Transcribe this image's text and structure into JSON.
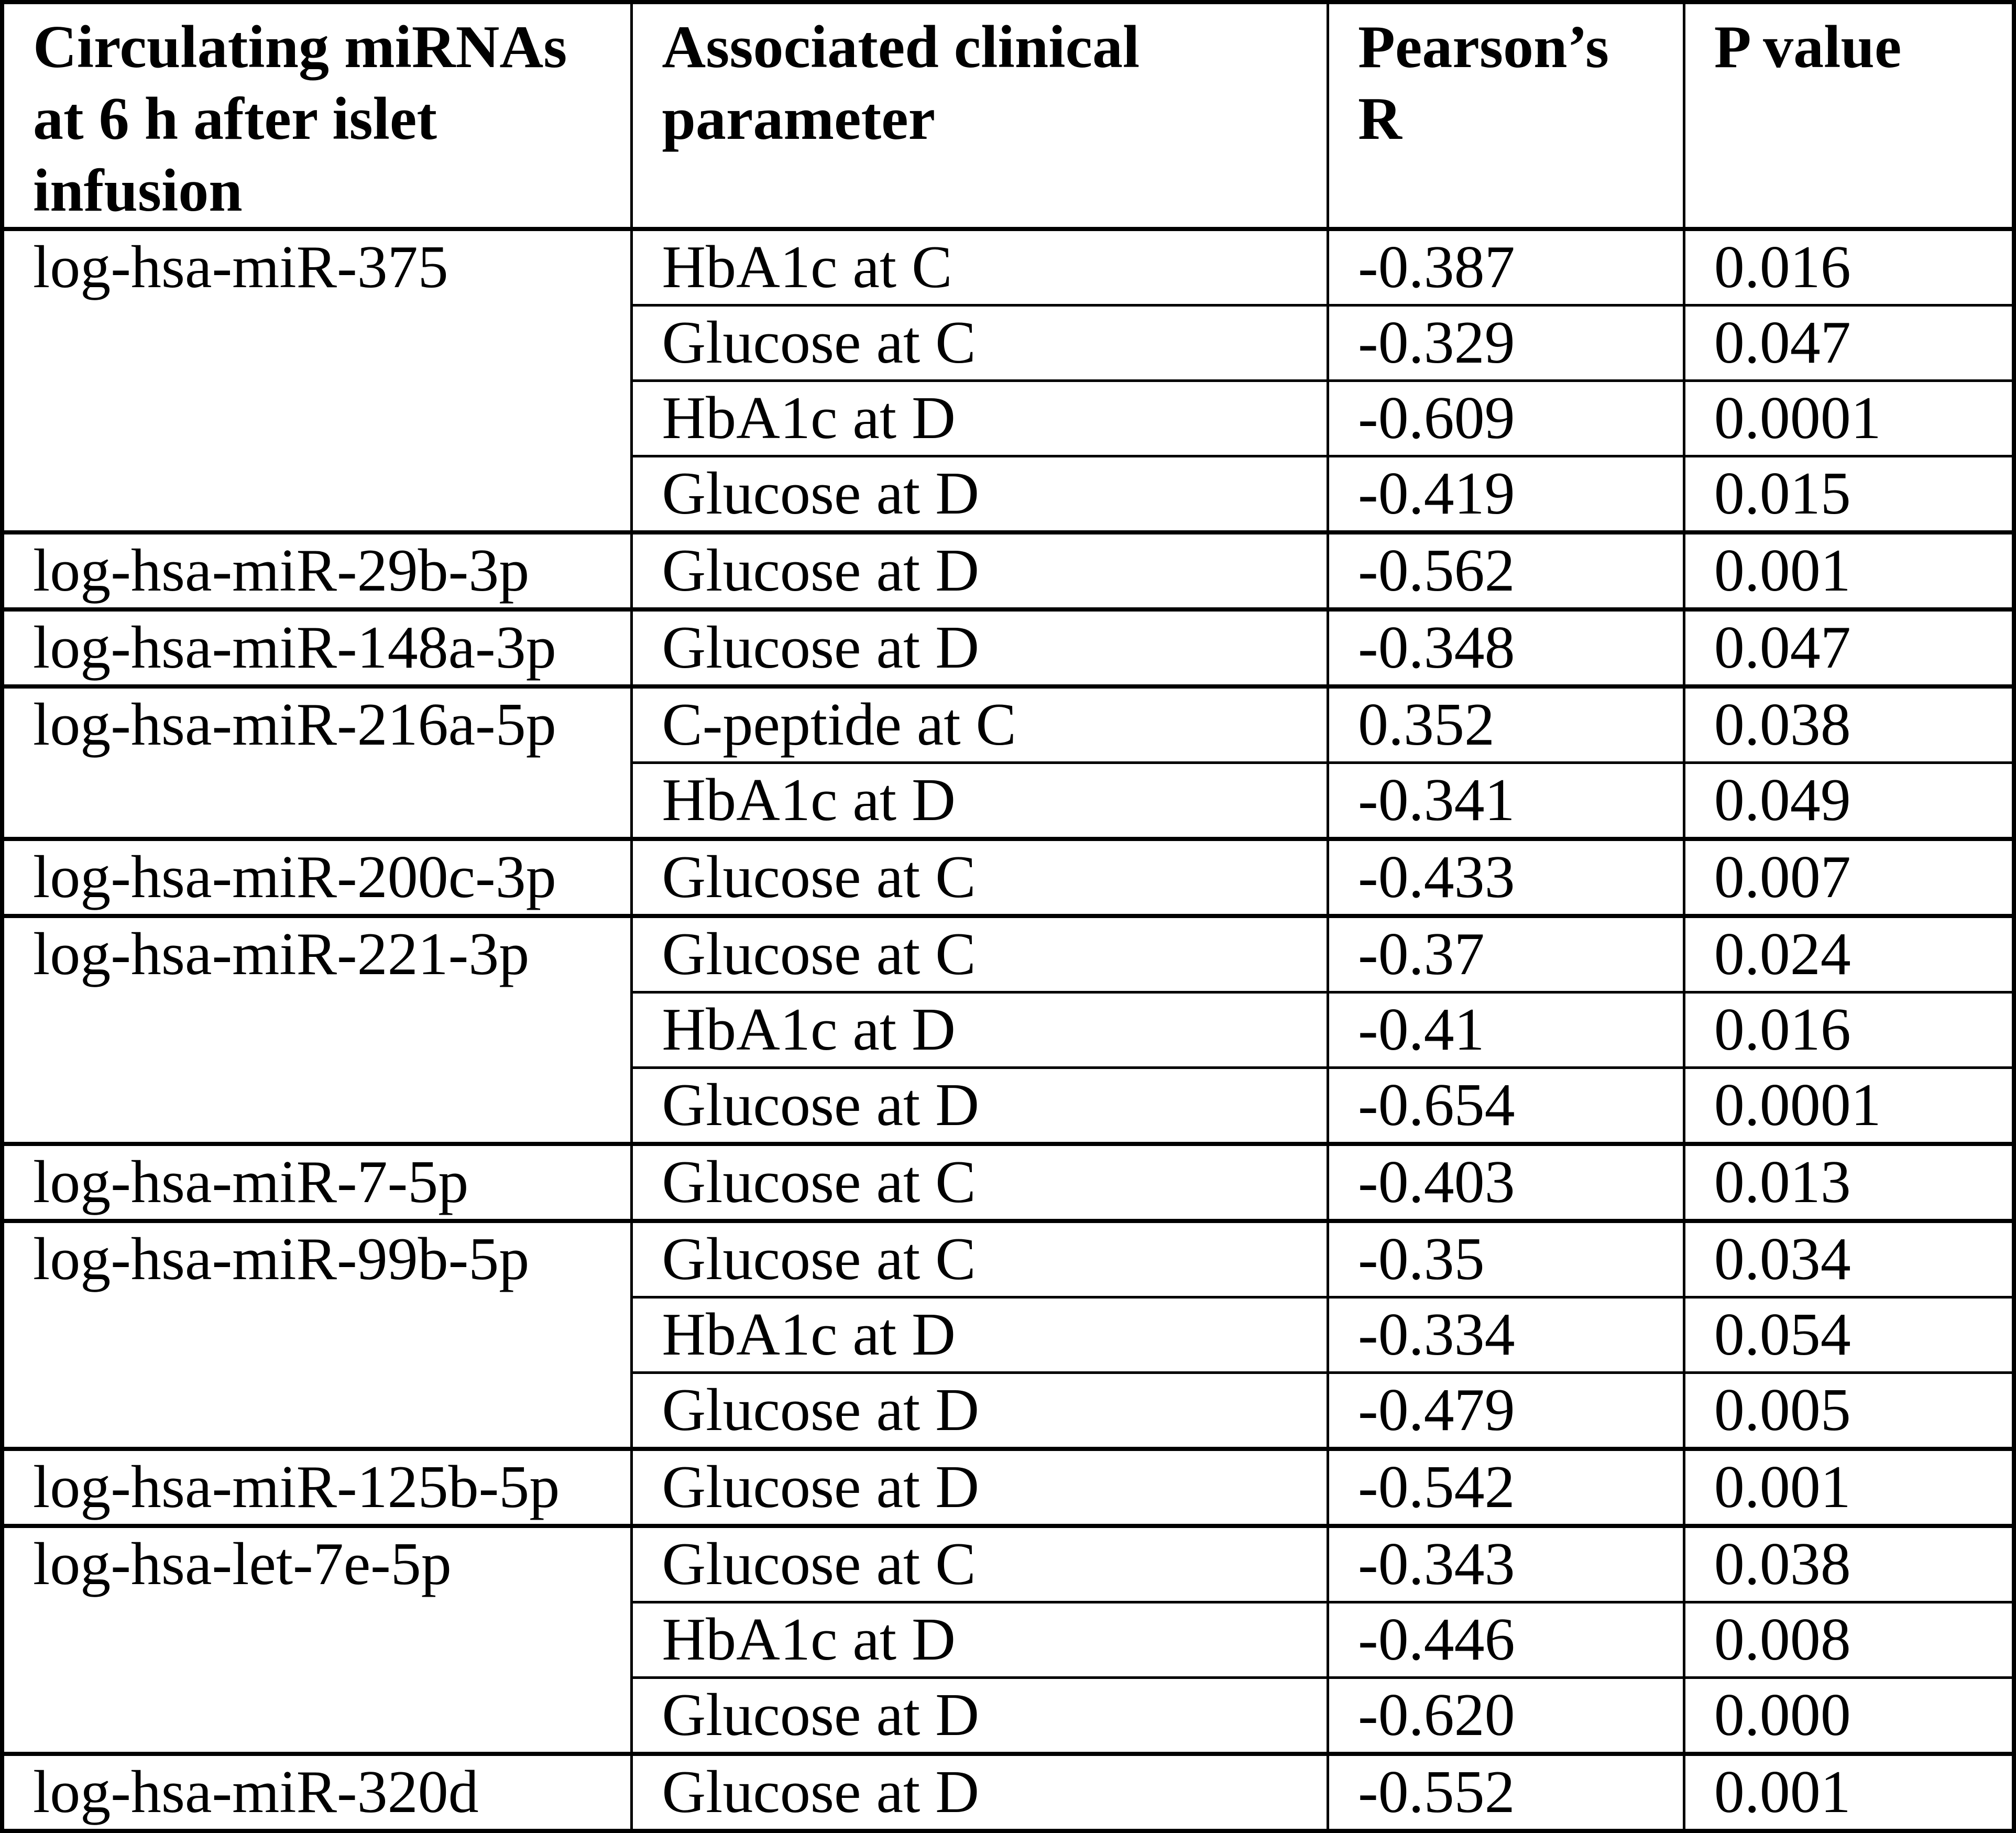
{
  "table": {
    "headers": [
      "Circulating miRNAs\nat 6 h after islet\ninfusion",
      "Associated clinical\nparameter",
      "Pearson’s\nR",
      "P value"
    ],
    "groups": [
      {
        "mirna": "log-hsa-miR-375",
        "rows": [
          {
            "parameter": "HbA1c at C",
            "pearson_r": "-0.387",
            "p_value": "0.016"
          },
          {
            "parameter": "Glucose at C",
            "pearson_r": "-0.329",
            "p_value": "0.047"
          },
          {
            "parameter": "HbA1c at D",
            "pearson_r": "-0.609",
            "p_value": "0.0001"
          },
          {
            "parameter": "Glucose at D",
            "pearson_r": "-0.419",
            "p_value": "0.015"
          }
        ]
      },
      {
        "mirna": "log-hsa-miR-29b-3p",
        "rows": [
          {
            "parameter": "Glucose at D",
            "pearson_r": "-0.562",
            "p_value": "0.001"
          }
        ]
      },
      {
        "mirna": "log-hsa-miR-148a-3p",
        "rows": [
          {
            "parameter": "Glucose at D",
            "pearson_r": "-0.348",
            "p_value": "0.047"
          }
        ]
      },
      {
        "mirna": "log-hsa-miR-216a-5p",
        "rows": [
          {
            "parameter": "C-peptide at C",
            "pearson_r": "0.352",
            "p_value": "0.038"
          },
          {
            "parameter": "HbA1c at D",
            "pearson_r": "-0.341",
            "p_value": "0.049"
          }
        ]
      },
      {
        "mirna": "log-hsa-miR-200c-3p",
        "rows": [
          {
            "parameter": "Glucose at C",
            "pearson_r": "-0.433",
            "p_value": "0.007"
          }
        ]
      },
      {
        "mirna": "log-hsa-miR-221-3p",
        "rows": [
          {
            "parameter": "Glucose at C",
            "pearson_r": "-0.37",
            "p_value": "0.024"
          },
          {
            "parameter": "HbA1c at D",
            "pearson_r": "-0.41",
            "p_value": "0.016"
          },
          {
            "parameter": "Glucose at D",
            "pearson_r": "-0.654",
            "p_value": "0.0001"
          }
        ]
      },
      {
        "mirna": "log-hsa-miR-7-5p",
        "rows": [
          {
            "parameter": "Glucose at C",
            "pearson_r": "-0.403",
            "p_value": "0.013"
          }
        ]
      },
      {
        "mirna": "log-hsa-miR-99b-5p",
        "rows": [
          {
            "parameter": "Glucose at C",
            "pearson_r": "-0.35",
            "p_value": "0.034"
          },
          {
            "parameter": "HbA1c at D",
            "pearson_r": "-0.334",
            "p_value": "0.054"
          },
          {
            "parameter": "Glucose at D",
            "pearson_r": "-0.479",
            "p_value": "0.005"
          }
        ]
      },
      {
        "mirna": "log-hsa-miR-125b-5p",
        "rows": [
          {
            "parameter": "Glucose at D",
            "pearson_r": "-0.542",
            "p_value": "0.001"
          }
        ]
      },
      {
        "mirna": "log-hsa-let-7e-5p",
        "rows": [
          {
            "parameter": "Glucose at C",
            "pearson_r": "-0.343",
            "p_value": "0.038"
          },
          {
            "parameter": "HbA1c at D",
            "pearson_r": "-0.446",
            "p_value": "0.008"
          },
          {
            "parameter": "Glucose at D",
            "pearson_r": "-0.620",
            "p_value": "0.000"
          }
        ]
      },
      {
        "mirna": "log-hsa-miR-320d",
        "rows": [
          {
            "parameter": "Glucose at D",
            "pearson_r": "-0.552",
            "p_value": "0.001"
          }
        ]
      }
    ]
  }
}
